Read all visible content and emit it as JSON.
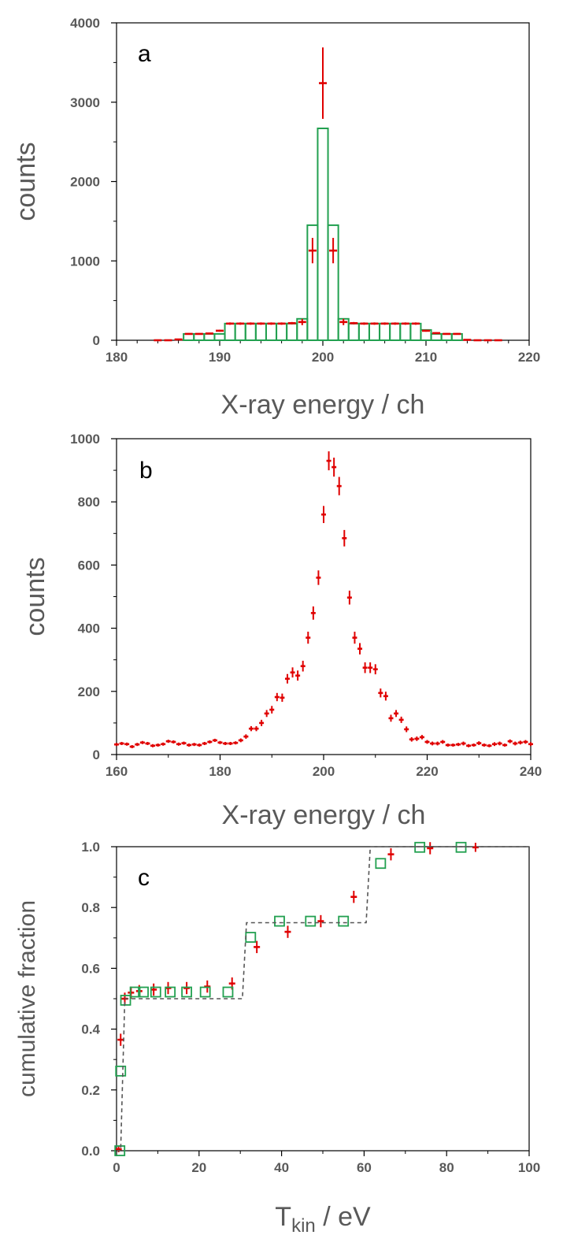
{
  "colors": {
    "data": "#e00000",
    "model": "#22a050",
    "dashed": "#555555",
    "axis": "#000000",
    "text": "#595959"
  },
  "chart_data": [
    {
      "id": "a",
      "type": "bar",
      "panel_label": "a",
      "xlabel": "X-ray energy  / ch",
      "ylabel": "counts",
      "xlim": [
        180,
        220
      ],
      "ylim": [
        0,
        4000
      ],
      "xticks": [
        180,
        190,
        200,
        210,
        220
      ],
      "yticks": [
        0,
        1000,
        2000,
        3000,
        4000
      ],
      "xtick_labels": [
        "180",
        "190",
        "200",
        "210",
        "220"
      ],
      "ytick_labels": [
        "0",
        "1000",
        "2000",
        "3000",
        "4000"
      ],
      "model_histogram": {
        "name": "model",
        "bin_width": 1,
        "bin_centers": [
          187,
          188,
          189,
          190,
          191,
          192,
          193,
          194,
          195,
          196,
          197,
          198,
          199,
          200,
          201,
          202,
          203,
          204,
          205,
          206,
          207,
          208,
          209,
          210,
          211,
          212,
          213
        ],
        "values": [
          80,
          80,
          80,
          80,
          210,
          210,
          210,
          210,
          210,
          210,
          210,
          270,
          1450,
          2670,
          1450,
          270,
          210,
          210,
          210,
          210,
          210,
          210,
          210,
          130,
          80,
          80,
          80
        ]
      },
      "series": [
        {
          "name": "data",
          "x": [
            184,
            185,
            186,
            187,
            188,
            189,
            190,
            191,
            192,
            193,
            194,
            195,
            196,
            197,
            198,
            199,
            200,
            201,
            202,
            203,
            204,
            205,
            206,
            207,
            208,
            209,
            210,
            211,
            212,
            213,
            214,
            215,
            216,
            217
          ],
          "values": [
            0,
            0,
            10,
            80,
            80,
            85,
            120,
            210,
            210,
            210,
            210,
            210,
            210,
            215,
            230,
            1130,
            3240,
            1130,
            230,
            215,
            210,
            210,
            210,
            210,
            210,
            210,
            120,
            90,
            80,
            80,
            5,
            0,
            0,
            0
          ],
          "errors": [
            0,
            0,
            5,
            10,
            10,
            10,
            12,
            15,
            15,
            15,
            15,
            15,
            15,
            15,
            40,
            160,
            450,
            160,
            40,
            15,
            15,
            15,
            15,
            15,
            15,
            15,
            12,
            10,
            10,
            10,
            5,
            0,
            0,
            0
          ]
        }
      ]
    },
    {
      "id": "b",
      "type": "scatter",
      "panel_label": "b",
      "xlabel": "X-ray energy / ch",
      "ylabel": "counts",
      "xlim": [
        160,
        240
      ],
      "ylim": [
        0,
        1000
      ],
      "xticks": [
        160,
        180,
        200,
        220,
        240
      ],
      "yticks": [
        0,
        200,
        400,
        600,
        800,
        1000
      ],
      "xtick_labels": [
        "160",
        "180",
        "200",
        "220",
        "240"
      ],
      "ytick_labels": [
        "0",
        "200",
        "400",
        "600",
        "800",
        "1000"
      ],
      "series": [
        {
          "name": "data",
          "x": [
            160,
            161,
            162,
            163,
            164,
            165,
            166,
            167,
            168,
            169,
            170,
            171,
            172,
            173,
            174,
            175,
            176,
            177,
            178,
            179,
            180,
            181,
            182,
            183,
            184,
            185,
            186,
            187,
            188,
            189,
            190,
            191,
            192,
            193,
            194,
            195,
            196,
            197,
            198,
            199,
            200,
            201,
            202,
            203,
            204,
            205,
            206,
            207,
            208,
            209,
            210,
            211,
            212,
            213,
            214,
            215,
            216,
            217,
            218,
            219,
            220,
            221,
            222,
            223,
            224,
            225,
            226,
            227,
            228,
            229,
            230,
            231,
            232,
            233,
            234,
            235,
            236,
            237,
            238,
            239,
            240
          ],
          "values": [
            32,
            35,
            33,
            25,
            32,
            38,
            35,
            28,
            30,
            33,
            42,
            40,
            33,
            36,
            30,
            32,
            30,
            35,
            40,
            45,
            38,
            35,
            35,
            37,
            45,
            57,
            82,
            82,
            100,
            130,
            142,
            182,
            180,
            240,
            260,
            250,
            280,
            370,
            448,
            560,
            760,
            930,
            910,
            850,
            685,
            497,
            370,
            335,
            275,
            275,
            270,
            195,
            185,
            115,
            130,
            110,
            80,
            48,
            50,
            55,
            40,
            35,
            35,
            40,
            30,
            30,
            32,
            35,
            28,
            30,
            36,
            30,
            28,
            33,
            35,
            30,
            42,
            35,
            38,
            40,
            33
          ],
          "errors": [
            5,
            5,
            5,
            5,
            5,
            5,
            5,
            5,
            5,
            5,
            5,
            5,
            5,
            5,
            5,
            5,
            5,
            5,
            5,
            5,
            5,
            5,
            5,
            5,
            6,
            7,
            8,
            8,
            10,
            11,
            12,
            13,
            13,
            15,
            16,
            16,
            17,
            19,
            21,
            23,
            27,
            30,
            30,
            29,
            26,
            22,
            19,
            18,
            17,
            17,
            16,
            14,
            14,
            11,
            11,
            10,
            9,
            7,
            7,
            7,
            6,
            6,
            6,
            6,
            5,
            5,
            5,
            6,
            5,
            5,
            6,
            5,
            5,
            6,
            6,
            5,
            6,
            6,
            6,
            6,
            6
          ]
        }
      ]
    },
    {
      "id": "c",
      "type": "scatter",
      "panel_label": "c",
      "xlabel": "T",
      "xlabel_sub": "kin",
      "xlabel_suffix": " / eV",
      "ylabel": "cumulative fraction",
      "xlim": [
        0,
        100
      ],
      "ylim": [
        0.0,
        1.0
      ],
      "xticks": [
        0,
        20,
        40,
        60,
        80,
        100
      ],
      "yticks": [
        0.0,
        0.2,
        0.4,
        0.6,
        0.8,
        1.0
      ],
      "xtick_labels": [
        "0",
        "20",
        "40",
        "60",
        "80",
        "100"
      ],
      "ytick_labels": [
        "0.0",
        "0.2",
        "0.4",
        "0.6",
        "0.8",
        "1.0"
      ],
      "series": [
        {
          "name": "data",
          "x": [
            0.5,
            1.0,
            2.0,
            3.5,
            5.5,
            9.0,
            12.5,
            17.0,
            22.0,
            28.0,
            34.0,
            41.5,
            49.5,
            57.5,
            66.5,
            76.0,
            87.0
          ],
          "values": [
            0.005,
            0.365,
            0.5,
            0.52,
            0.525,
            0.53,
            0.535,
            0.535,
            0.54,
            0.55,
            0.67,
            0.72,
            0.755,
            0.835,
            0.975,
            0.995,
            0.998
          ],
          "errors": [
            0.01,
            0.02,
            0.02,
            0.02,
            0.02,
            0.02,
            0.02,
            0.02,
            0.02,
            0.02,
            0.02,
            0.02,
            0.02,
            0.02,
            0.02,
            0.02,
            0.015
          ]
        },
        {
          "name": "model-points",
          "marker": "open-square",
          "x": [
            0.8,
            1.0,
            2.2,
            4.5,
            6.5,
            9.5,
            13.0,
            17.0,
            21.5,
            27.0,
            32.5,
            39.5,
            47.0,
            55.0,
            64.0,
            73.5,
            83.5
          ],
          "values": [
            0.0,
            0.262,
            0.495,
            0.522,
            0.522,
            0.522,
            0.522,
            0.522,
            0.522,
            0.522,
            0.702,
            0.755,
            0.755,
            0.755,
            0.945,
            0.998,
            0.998
          ]
        },
        {
          "name": "step-model",
          "style": "dashed",
          "x": [
            0,
            1,
            2,
            30.5,
            31.5,
            60.5,
            61.5,
            100
          ],
          "values": [
            0.0,
            0.0,
            0.5,
            0.5,
            0.75,
            0.75,
            1.0,
            1.0
          ]
        }
      ]
    }
  ]
}
